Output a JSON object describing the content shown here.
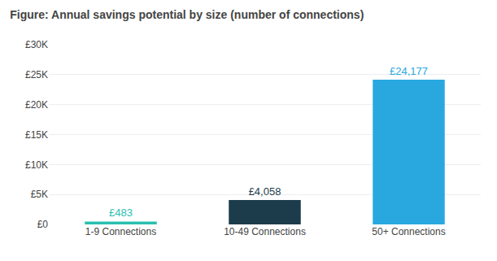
{
  "chart_data": {
    "type": "bar",
    "title": "Figure: Annual savings potential by size (number of connections)",
    "categories": [
      "1-9 Connections",
      "10-49 Connections",
      "50+ Connections"
    ],
    "values": [
      483,
      4058,
      24177
    ],
    "value_labels": [
      "£483",
      "£4,058",
      "£24,177"
    ],
    "colors": [
      "#2abfb0",
      "#1d3c4b",
      "#29a8e0"
    ],
    "data_labels": true,
    "ylim": [
      0,
      30000
    ],
    "yticks": [
      {
        "value": 0,
        "label": "£0"
      },
      {
        "value": 5000,
        "label": "£5K"
      },
      {
        "value": 10000,
        "label": "£10K"
      },
      {
        "value": 15000,
        "label": "£15K"
      },
      {
        "value": 20000,
        "label": "£20K"
      },
      {
        "value": 25000,
        "label": "£25K"
      },
      {
        "value": 30000,
        "label": "£30K"
      }
    ],
    "grid": true
  }
}
